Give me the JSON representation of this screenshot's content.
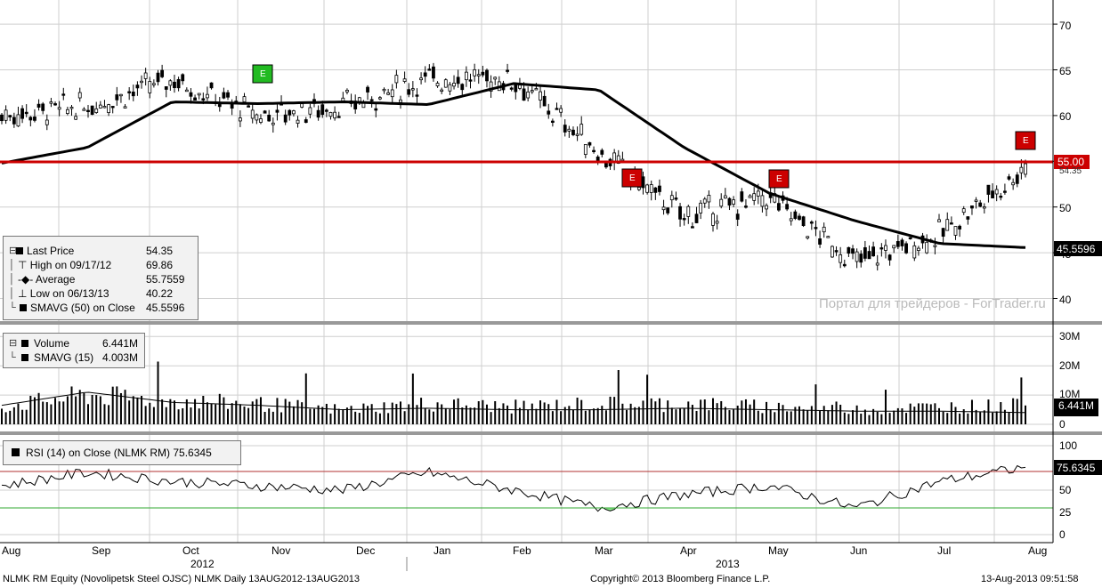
{
  "price_panel": {
    "y_ticks": [
      "40",
      "45",
      "50",
      "55",
      "60",
      "65",
      "70"
    ],
    "resistance_label": "55.00",
    "hidden_last_label": "54.35",
    "sma_label": "45.5596",
    "watermark": "Портал для трейдеров - ForTrader.ru",
    "earnings_marker": "E",
    "legend": {
      "items": [
        {
          "label": "Last Price",
          "value": "54.35"
        },
        {
          "label": "High on 09/17/12",
          "value": "69.86"
        },
        {
          "label": "Average",
          "value": "55.7559"
        },
        {
          "label": "Low on 06/13/13",
          "value": "40.22"
        },
        {
          "label": "SMAVG (50) on Close",
          "value": "45.5596"
        }
      ]
    }
  },
  "volume_panel": {
    "y_ticks": [
      "0",
      "10M",
      "20M",
      "30M"
    ],
    "last_label": "6.441M",
    "legend": {
      "items": [
        {
          "label": "Volume",
          "value": "6.441M"
        },
        {
          "label": "SMAVG (15)",
          "value": "4.003M"
        }
      ]
    }
  },
  "rsi_panel": {
    "y_ticks": [
      "0",
      "25",
      "50",
      "75",
      "100"
    ],
    "last_label": "75.6345",
    "legend": "RSI (14) on Close (NLMK RM) 75.6345"
  },
  "x_axis": {
    "months": [
      "Aug",
      "Sep",
      "Oct",
      "Nov",
      "Dec",
      "Jan",
      "Feb",
      "Mar",
      "Apr",
      "May",
      "Jun",
      "Jul",
      "Aug"
    ],
    "years": [
      "2012",
      "2013"
    ]
  },
  "footer": {
    "left": "NLMK RM Equity (Novolipetsk Steel OJSC) NLMK  Daily 13AUG2012-13AUG2013",
    "center": "Copyright© 2013 Bloomberg Finance L.P.",
    "right": "13-Aug-2013 09:51:58"
  },
  "colors": {
    "resistance": "#cc0000",
    "rsi_upper": "#b03030",
    "rsi_lower": "#33aa33",
    "rsi_fill": "#90ee90",
    "sma": "#000000",
    "earnings_green": "#22bb22",
    "earnings_red": "#cc0000"
  },
  "chart_data": [
    {
      "type": "line",
      "title": "NLMK RM Equity (Novolipetsk Steel OJSC) NLMK Daily 13AUG2012-13AUG2013",
      "ylim": [
        38,
        72
      ],
      "x": [
        "Aug",
        "Sep",
        "Oct",
        "Nov",
        "Dec",
        "Jan",
        "Feb",
        "Mar",
        "Apr",
        "May",
        "Jun",
        "Jul",
        "Aug"
      ],
      "series": [
        {
          "name": "Last Price",
          "values": [
            60,
            61,
            64,
            60,
            61,
            64,
            64,
            56,
            49,
            51,
            44,
            47,
            54.35
          ]
        },
        {
          "name": "SMAVG (50) on Close",
          "values": [
            54.8,
            56.5,
            61.5,
            61.3,
            61.5,
            61.2,
            63.5,
            62.8,
            56.5,
            51.5,
            48.5,
            46.0,
            45.56
          ]
        }
      ],
      "resistance": 55.0,
      "stats": {
        "last": 54.35,
        "high": 69.86,
        "high_date": "09/17/12",
        "average": 55.7559,
        "low": 40.22,
        "low_date": "06/13/13"
      }
    },
    {
      "type": "bar",
      "ylim": [
        0,
        33
      ],
      "x": [
        "Aug",
        "Sep",
        "Oct",
        "Nov",
        "Dec",
        "Jan",
        "Feb",
        "Mar",
        "Apr",
        "May",
        "Jun",
        "Jul",
        "Aug"
      ],
      "series": [
        {
          "name": "Volume",
          "values": [
            6,
            10,
            8,
            7,
            5,
            7,
            6,
            7,
            7,
            6,
            5,
            6,
            6.441
          ]
        },
        {
          "name": "SMAVG (15)",
          "values": [
            6.5,
            11,
            7.5,
            6.5,
            5,
            5.5,
            5,
            5,
            5.5,
            5,
            4.5,
            4.5,
            4.003
          ]
        }
      ]
    },
    {
      "type": "line",
      "ylim": [
        0,
        100
      ],
      "x": [
        "Aug",
        "Sep",
        "Oct",
        "Nov",
        "Dec",
        "Jan",
        "Feb",
        "Mar",
        "Apr",
        "May",
        "Jun",
        "Jul",
        "Aug"
      ],
      "series": [
        {
          "name": "RSI (14) on Close (NLMK RM)",
          "values": [
            55,
            70,
            60,
            55,
            50,
            70,
            50,
            30,
            45,
            55,
            30,
            60,
            75.6345
          ]
        }
      ],
      "levels": [
        30,
        70
      ]
    }
  ]
}
